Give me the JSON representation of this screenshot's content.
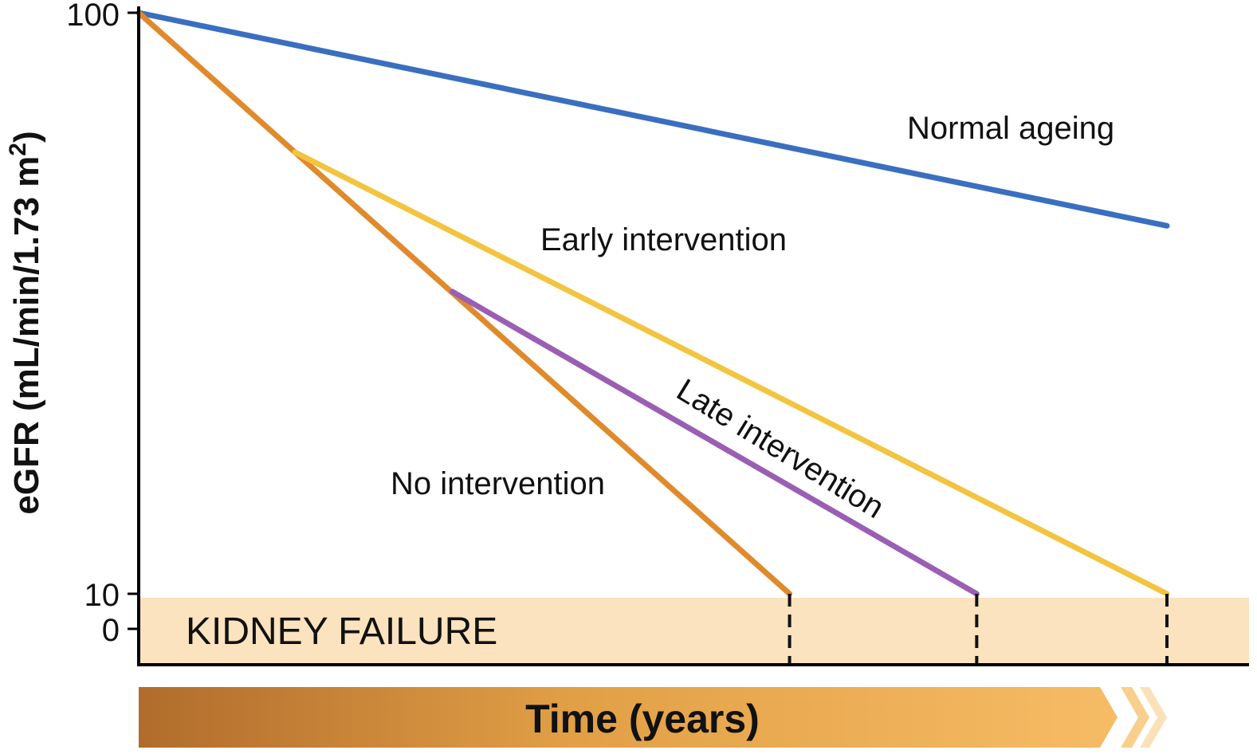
{
  "chart_data": {
    "type": "line",
    "ylabel": "eGFR (mL/min/1.73 m",
    "ylabel_sup": "2",
    "ylabel_close": ")",
    "xlabel": "Time (years)",
    "ylim": [
      0,
      100
    ],
    "xlim": [
      0,
      100
    ],
    "yticks": [
      "100",
      "10",
      "0"
    ],
    "yticks_values": [
      100,
      10,
      0
    ],
    "region": {
      "label": "KIDNEY FAILURE",
      "y_from": 0,
      "y_to": 10,
      "color": "#fbe3bf"
    },
    "series": [
      {
        "name": "Normal ageing",
        "color": "#3a6fc0",
        "x": [
          0,
          100
        ],
        "y": [
          100,
          67
        ]
      },
      {
        "name": "No intervention",
        "color": "#e08a2c",
        "x": [
          0,
          63.3
        ],
        "y": [
          100,
          10
        ]
      },
      {
        "name": "Early intervention",
        "color": "#f3c43f",
        "x": [
          15.2,
          100
        ],
        "y": [
          78.4,
          10
        ]
      },
      {
        "name": "Late intervention",
        "color": "#9a5eb4",
        "x": [
          30.5,
          81.5
        ],
        "y": [
          56.8,
          10
        ]
      }
    ],
    "dashed_markers_x": [
      63.3,
      81.5,
      100
    ]
  }
}
